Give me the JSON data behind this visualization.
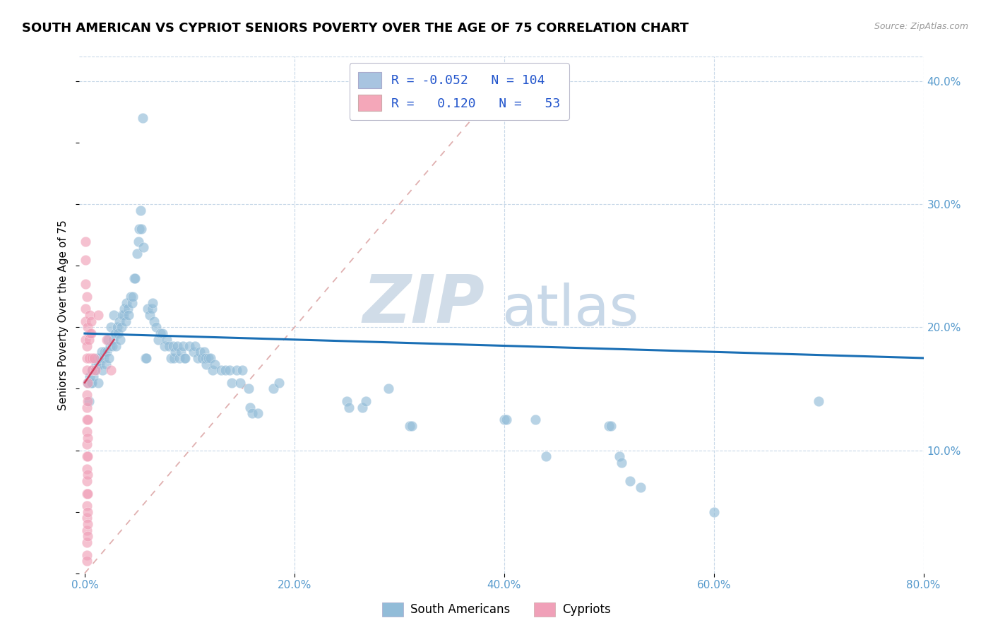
{
  "title": "SOUTH AMERICAN VS CYPRIOT SENIORS POVERTY OVER THE AGE OF 75 CORRELATION CHART",
  "source": "Source: ZipAtlas.com",
  "xlabel_ticks": [
    "0.0%",
    "20.0%",
    "40.0%",
    "60.0%",
    "80.0%"
  ],
  "ylabel_ticks": [
    "10.0%",
    "20.0%",
    "30.0%",
    "40.0%"
  ],
  "ylabel_label": "Seniors Poverty Over the Age of 75",
  "legend_entries": [
    {
      "label": "South Americans",
      "color": "#a8c4e0",
      "R": "-0.052",
      "N": "104"
    },
    {
      "label": "Cypriots",
      "color": "#f4a7b9",
      "R": " 0.120",
      "N": " 53"
    }
  ],
  "blue_scatter": [
    [
      0.003,
      0.155
    ],
    [
      0.004,
      0.14
    ],
    [
      0.005,
      0.16
    ],
    [
      0.006,
      0.155
    ],
    [
      0.007,
      0.155
    ],
    [
      0.007,
      0.165
    ],
    [
      0.008,
      0.16
    ],
    [
      0.009,
      0.165
    ],
    [
      0.01,
      0.165
    ],
    [
      0.011,
      0.17
    ],
    [
      0.012,
      0.175
    ],
    [
      0.013,
      0.17
    ],
    [
      0.013,
      0.155
    ],
    [
      0.014,
      0.17
    ],
    [
      0.015,
      0.175
    ],
    [
      0.016,
      0.18
    ],
    [
      0.017,
      0.165
    ],
    [
      0.018,
      0.175
    ],
    [
      0.019,
      0.18
    ],
    [
      0.02,
      0.17
    ],
    [
      0.021,
      0.18
    ],
    [
      0.022,
      0.19
    ],
    [
      0.023,
      0.175
    ],
    [
      0.024,
      0.185
    ],
    [
      0.025,
      0.2
    ],
    [
      0.026,
      0.185
    ],
    [
      0.027,
      0.19
    ],
    [
      0.028,
      0.21
    ],
    [
      0.029,
      0.195
    ],
    [
      0.03,
      0.185
    ],
    [
      0.031,
      0.2
    ],
    [
      0.032,
      0.195
    ],
    [
      0.033,
      0.205
    ],
    [
      0.034,
      0.19
    ],
    [
      0.035,
      0.2
    ],
    [
      0.036,
      0.21
    ],
    [
      0.037,
      0.21
    ],
    [
      0.038,
      0.215
    ],
    [
      0.039,
      0.205
    ],
    [
      0.04,
      0.22
    ],
    [
      0.041,
      0.215
    ],
    [
      0.042,
      0.21
    ],
    [
      0.044,
      0.225
    ],
    [
      0.045,
      0.22
    ],
    [
      0.046,
      0.225
    ],
    [
      0.047,
      0.24
    ],
    [
      0.048,
      0.24
    ],
    [
      0.05,
      0.26
    ],
    [
      0.051,
      0.27
    ],
    [
      0.052,
      0.28
    ],
    [
      0.053,
      0.295
    ],
    [
      0.054,
      0.28
    ],
    [
      0.056,
      0.265
    ],
    [
      0.06,
      0.215
    ],
    [
      0.062,
      0.21
    ],
    [
      0.064,
      0.215
    ],
    [
      0.065,
      0.22
    ],
    [
      0.066,
      0.205
    ],
    [
      0.068,
      0.2
    ],
    [
      0.07,
      0.19
    ],
    [
      0.072,
      0.195
    ],
    [
      0.074,
      0.195
    ],
    [
      0.076,
      0.185
    ],
    [
      0.078,
      0.19
    ],
    [
      0.08,
      0.185
    ],
    [
      0.082,
      0.175
    ],
    [
      0.084,
      0.185
    ],
    [
      0.085,
      0.175
    ],
    [
      0.086,
      0.18
    ],
    [
      0.088,
      0.185
    ],
    [
      0.09,
      0.175
    ],
    [
      0.092,
      0.18
    ],
    [
      0.094,
      0.185
    ],
    [
      0.095,
      0.175
    ],
    [
      0.096,
      0.175
    ],
    [
      0.1,
      0.185
    ],
    [
      0.104,
      0.18
    ],
    [
      0.105,
      0.185
    ],
    [
      0.108,
      0.175
    ],
    [
      0.11,
      0.18
    ],
    [
      0.112,
      0.175
    ],
    [
      0.114,
      0.18
    ],
    [
      0.115,
      0.175
    ],
    [
      0.116,
      0.17
    ],
    [
      0.118,
      0.175
    ],
    [
      0.12,
      0.175
    ],
    [
      0.122,
      0.165
    ],
    [
      0.124,
      0.17
    ],
    [
      0.055,
      0.37
    ],
    [
      0.058,
      0.175
    ],
    [
      0.059,
      0.175
    ],
    [
      0.13,
      0.165
    ],
    [
      0.134,
      0.165
    ],
    [
      0.138,
      0.165
    ],
    [
      0.14,
      0.155
    ],
    [
      0.145,
      0.165
    ],
    [
      0.148,
      0.155
    ],
    [
      0.15,
      0.165
    ],
    [
      0.156,
      0.15
    ],
    [
      0.158,
      0.135
    ],
    [
      0.16,
      0.13
    ],
    [
      0.165,
      0.13
    ],
    [
      0.18,
      0.15
    ],
    [
      0.185,
      0.155
    ],
    [
      0.25,
      0.14
    ],
    [
      0.252,
      0.135
    ],
    [
      0.265,
      0.135
    ],
    [
      0.268,
      0.14
    ],
    [
      0.29,
      0.15
    ],
    [
      0.31,
      0.12
    ],
    [
      0.312,
      0.12
    ],
    [
      0.4,
      0.125
    ],
    [
      0.402,
      0.125
    ],
    [
      0.43,
      0.125
    ],
    [
      0.44,
      0.095
    ],
    [
      0.5,
      0.12
    ],
    [
      0.502,
      0.12
    ],
    [
      0.51,
      0.095
    ],
    [
      0.512,
      0.09
    ],
    [
      0.52,
      0.075
    ],
    [
      0.53,
      0.07
    ],
    [
      0.6,
      0.05
    ],
    [
      0.7,
      0.14
    ]
  ],
  "pink_scatter": [
    [
      0.001,
      0.27
    ],
    [
      0.001,
      0.255
    ],
    [
      0.001,
      0.235
    ],
    [
      0.001,
      0.215
    ],
    [
      0.001,
      0.205
    ],
    [
      0.001,
      0.19
    ],
    [
      0.002,
      0.225
    ],
    [
      0.002,
      0.185
    ],
    [
      0.002,
      0.175
    ],
    [
      0.002,
      0.165
    ],
    [
      0.002,
      0.145
    ],
    [
      0.002,
      0.135
    ],
    [
      0.002,
      0.125
    ],
    [
      0.002,
      0.115
    ],
    [
      0.002,
      0.105
    ],
    [
      0.002,
      0.095
    ],
    [
      0.002,
      0.085
    ],
    [
      0.002,
      0.075
    ],
    [
      0.002,
      0.065
    ],
    [
      0.002,
      0.055
    ],
    [
      0.002,
      0.045
    ],
    [
      0.002,
      0.035
    ],
    [
      0.002,
      0.025
    ],
    [
      0.002,
      0.015
    ],
    [
      0.002,
      0.01
    ],
    [
      0.003,
      0.2
    ],
    [
      0.003,
      0.155
    ],
    [
      0.003,
      0.14
    ],
    [
      0.003,
      0.125
    ],
    [
      0.003,
      0.11
    ],
    [
      0.003,
      0.095
    ],
    [
      0.003,
      0.08
    ],
    [
      0.003,
      0.065
    ],
    [
      0.003,
      0.05
    ],
    [
      0.003,
      0.04
    ],
    [
      0.003,
      0.03
    ],
    [
      0.004,
      0.19
    ],
    [
      0.004,
      0.175
    ],
    [
      0.005,
      0.21
    ],
    [
      0.005,
      0.195
    ],
    [
      0.006,
      0.205
    ],
    [
      0.006,
      0.195
    ],
    [
      0.007,
      0.175
    ],
    [
      0.007,
      0.165
    ],
    [
      0.009,
      0.175
    ],
    [
      0.01,
      0.165
    ],
    [
      0.013,
      0.21
    ],
    [
      0.021,
      0.19
    ],
    [
      0.025,
      0.165
    ]
  ],
  "blue_line": {
    "x": [
      0.0,
      0.8
    ],
    "y": [
      0.195,
      0.175
    ]
  },
  "pink_line": {
    "x": [
      0.0,
      0.028
    ],
    "y": [
      0.155,
      0.19
    ]
  },
  "diagonal_line": {
    "x": [
      0.0,
      0.4
    ],
    "y": [
      0.0,
      0.4
    ]
  },
  "xlim": [
    -0.005,
    0.8
  ],
  "ylim": [
    0.0,
    0.42
  ],
  "scatter_size": 110,
  "scatter_alpha": 0.65,
  "blue_color": "#92bcd8",
  "pink_color": "#f0a0b8",
  "blue_line_color": "#1a6fb5",
  "pink_line_color": "#d04060",
  "diag_line_color": "#e0b0b0",
  "title_fontsize": 13,
  "axis_label_fontsize": 11,
  "tick_fontsize": 11,
  "watermark_zip": "ZIP",
  "watermark_atlas": "atlas",
  "watermark_color": "#d0dce8"
}
